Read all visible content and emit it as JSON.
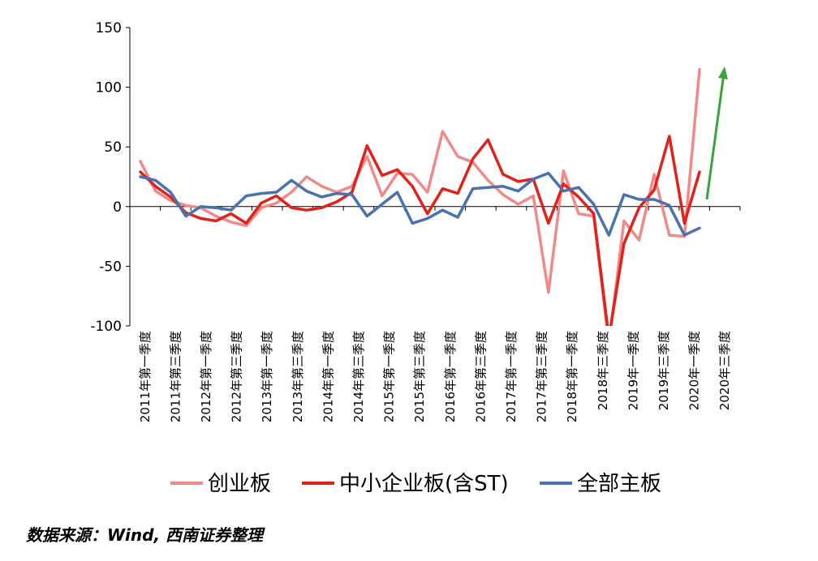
{
  "chart_data": {
    "type": "line",
    "title": "",
    "xlabel": "",
    "ylabel": "",
    "ylim": [
      -100,
      150
    ],
    "yticks": [
      150,
      100,
      50,
      0,
      -50,
      -100
    ],
    "grid": false,
    "legend_position": "bottom",
    "x_labels": [
      "2011年第一季度",
      "2011年第三季度",
      "2012年第一季度",
      "2012年第三季度",
      "2013年第一季度",
      "2013年第三季度",
      "2014年第一季度",
      "2014年第三季度",
      "2015年第一季度",
      "2015年第三季度",
      "2016年第一季度",
      "2016年第三季度",
      "2017年第一季度",
      "2017年第三季度",
      "2018年第一季度",
      "2018年三季度",
      "2019年一季度",
      "2019年三季度",
      "2020年一季度",
      "2020年三季度"
    ],
    "series": [
      {
        "name": "创业板",
        "color": "#f08a8a",
        "values": [
          38,
          13,
          5,
          1,
          -1,
          -8,
          -13,
          -16,
          -1,
          3,
          12,
          25,
          17,
          12,
          17,
          42,
          9,
          28,
          27,
          12,
          63,
          42,
          37,
          22,
          10,
          2,
          9,
          -72,
          30,
          -6,
          -8,
          -115,
          -12,
          -28,
          27,
          -24,
          -25,
          115
        ]
      },
      {
        "name": "中小企业板(含ST)",
        "color": "#e0221a",
        "values": [
          29,
          17,
          8,
          -5,
          -10,
          -12,
          -6,
          -14,
          3,
          9,
          -1,
          -3,
          -1,
          4,
          12,
          51,
          26,
          31,
          17,
          -6,
          15,
          11,
          40,
          56,
          27,
          21,
          23,
          -14,
          19,
          8,
          -6,
          -110,
          -31,
          -1,
          14,
          59,
          -14,
          29
        ]
      },
      {
        "name": "全部主板",
        "color": "#4a72b0",
        "values": [
          25,
          22,
          12,
          -8,
          0,
          -1,
          -3,
          9,
          11,
          12,
          22,
          13,
          8,
          11,
          10,
          -8,
          2,
          12,
          -14,
          -10,
          -3,
          -9,
          15,
          16,
          17,
          13,
          23,
          28,
          13,
          16,
          2,
          -24,
          10,
          6,
          6,
          1,
          -24,
          -18
        ]
      }
    ],
    "arrow_color": "#3aa33a"
  },
  "source_note": "数据来源：Wind, 西南证券整理"
}
